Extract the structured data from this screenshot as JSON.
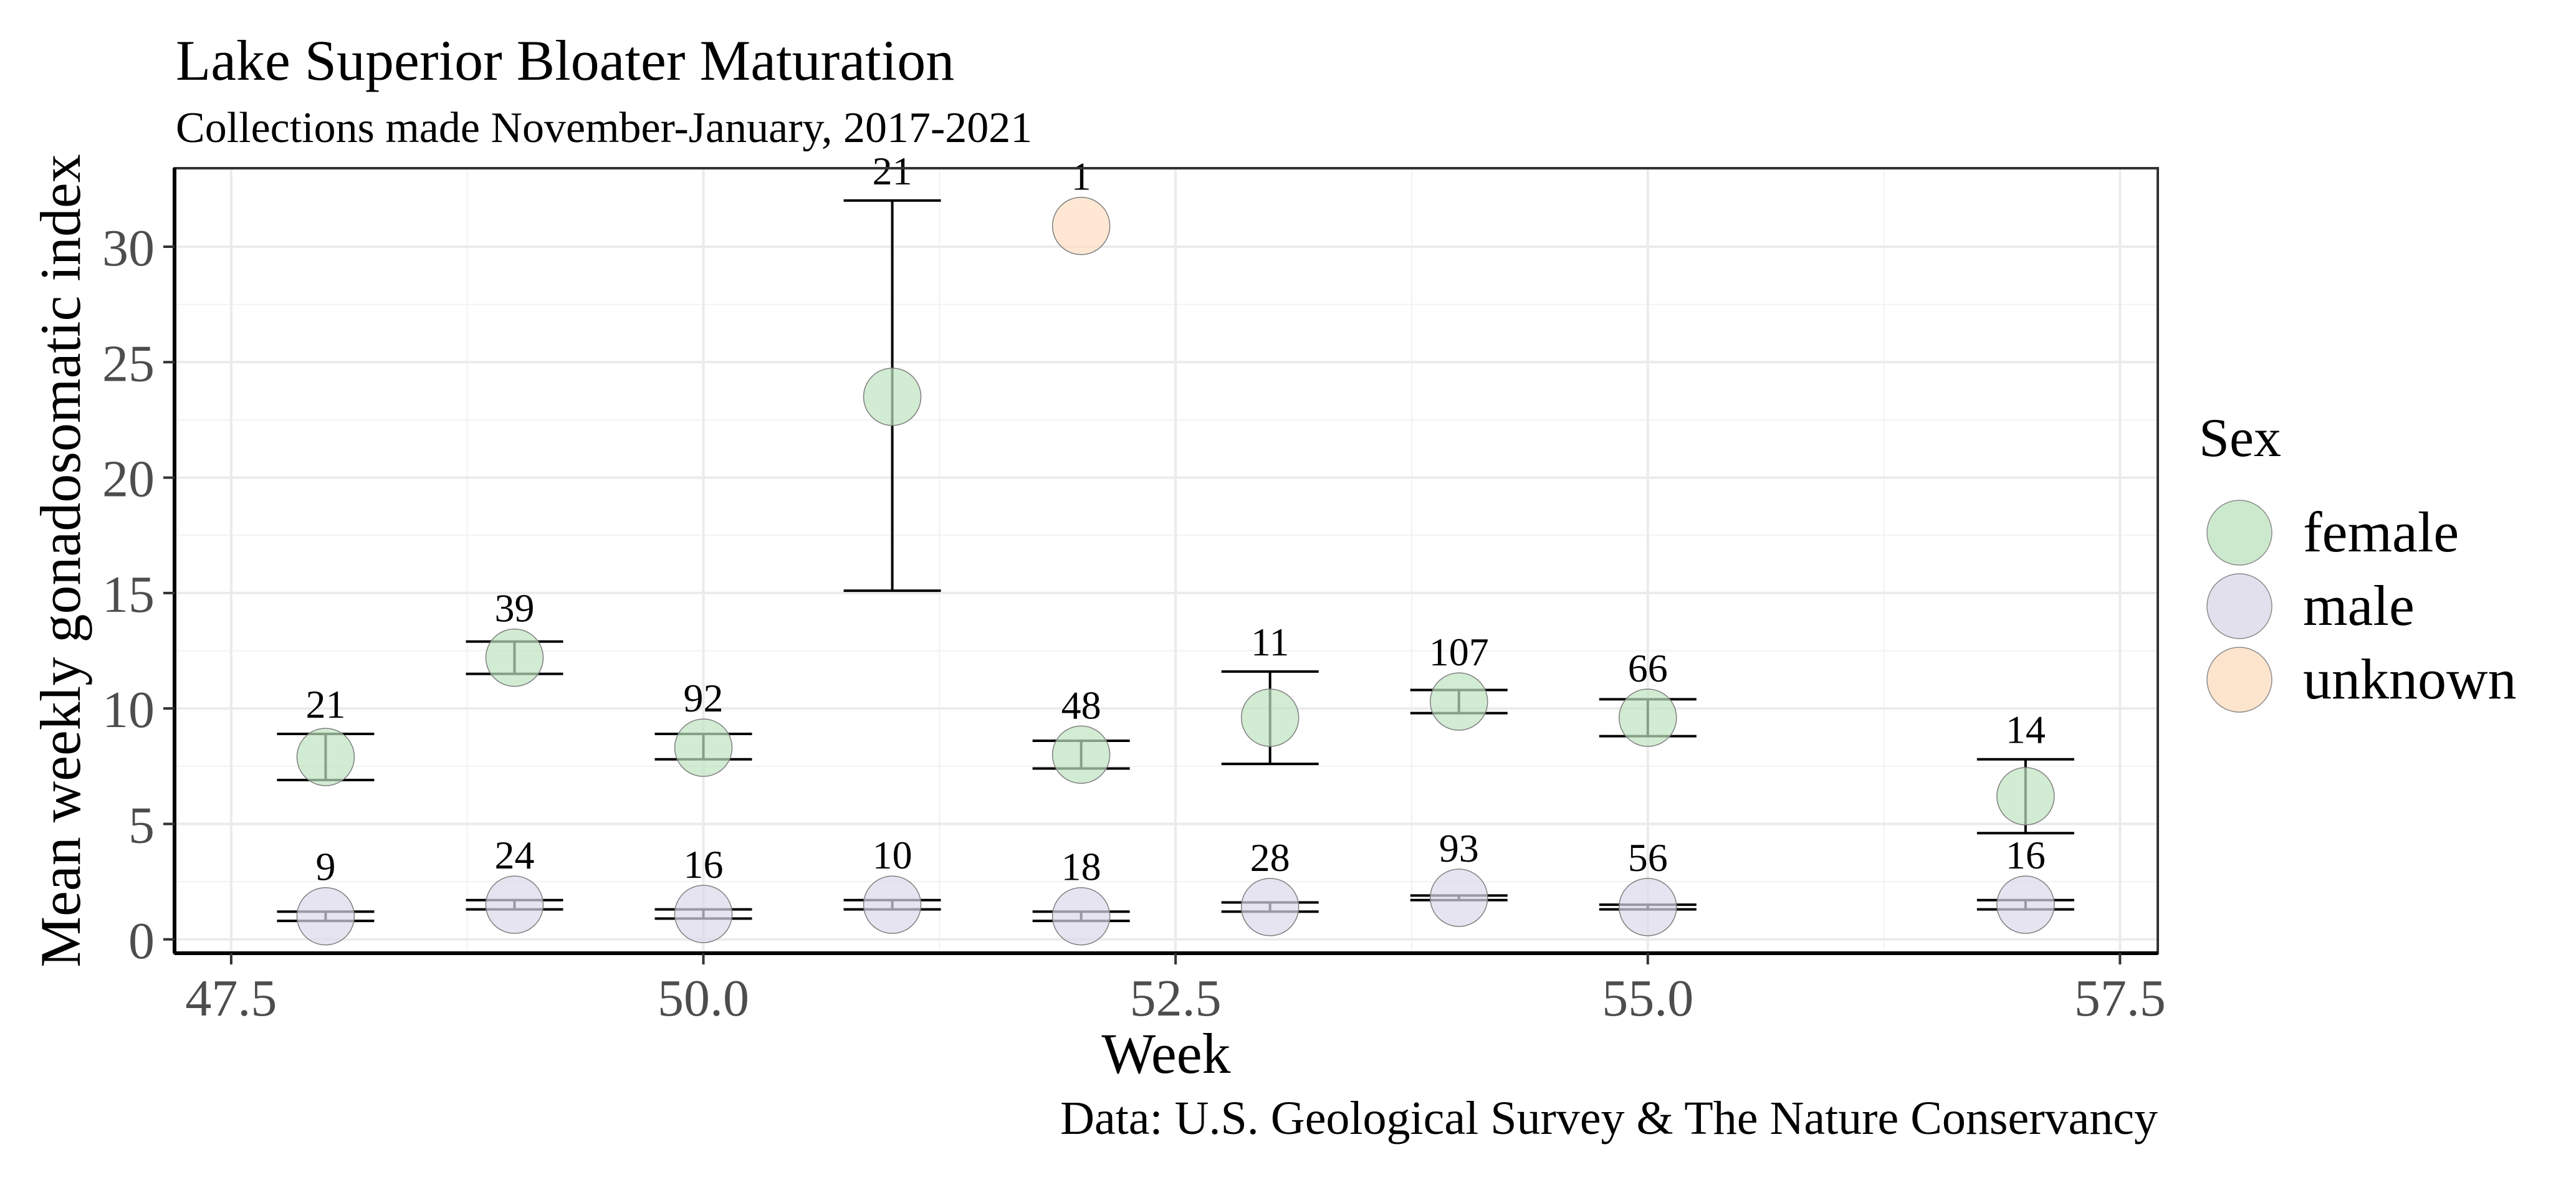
{
  "chart_data": {
    "type": "scatter",
    "title": "Lake Superior Bloater Maturation",
    "subtitle": "Collections made November-January, 2017-2021",
    "xlabel": "Week",
    "ylabel": "Mean weekly gonadosomatic index",
    "caption": "Data: U.S. Geological Survey & The Nature Conservancy",
    "xlim": [
      47.2,
      57.7
    ],
    "ylim": [
      -0.6,
      33.4
    ],
    "x_ticks": [
      47.5,
      50.0,
      52.5,
      55.0,
      57.5
    ],
    "x_tick_labels": [
      "47.5",
      "50.0",
      "52.5",
      "55.0",
      "57.5"
    ],
    "y_ticks": [
      0,
      5,
      10,
      15,
      20,
      25,
      30
    ],
    "y_tick_labels": [
      "0",
      "5",
      "10",
      "15",
      "20",
      "25",
      "30"
    ],
    "grid": true,
    "legend": {
      "title": "Sex",
      "position": "right",
      "items": [
        {
          "label": "female",
          "color": "#bfe3c0"
        },
        {
          "label": "male",
          "color": "#dcd8ea"
        },
        {
          "label": "unknown",
          "color": "#fdddc1"
        }
      ]
    },
    "series": [
      {
        "name": "female",
        "color": "#bfe3c0",
        "points": [
          {
            "x": 48,
            "y": 7.9,
            "ymin": 6.9,
            "ymax": 8.9,
            "n": "21"
          },
          {
            "x": 49,
            "y": 12.2,
            "ymin": 11.5,
            "ymax": 12.9,
            "n": "39"
          },
          {
            "x": 50,
            "y": 8.3,
            "ymin": 7.8,
            "ymax": 8.9,
            "n": "92"
          },
          {
            "x": 51,
            "y": 23.5,
            "ymin": 15.1,
            "ymax": 32.0,
            "n": "21"
          },
          {
            "x": 52,
            "y": 8.0,
            "ymin": 7.4,
            "ymax": 8.6,
            "n": "48"
          },
          {
            "x": 53,
            "y": 9.6,
            "ymin": 7.6,
            "ymax": 11.6,
            "n": "11"
          },
          {
            "x": 54,
            "y": 10.3,
            "ymin": 9.8,
            "ymax": 10.8,
            "n": "107"
          },
          {
            "x": 55,
            "y": 9.6,
            "ymin": 8.8,
            "ymax": 10.4,
            "n": "66"
          },
          {
            "x": 57,
            "y": 6.2,
            "ymin": 4.6,
            "ymax": 7.8,
            "n": "14"
          }
        ]
      },
      {
        "name": "male",
        "color": "#dcd8ea",
        "points": [
          {
            "x": 48,
            "y": 1.0,
            "ymin": 0.8,
            "ymax": 1.2,
            "n": "9"
          },
          {
            "x": 49,
            "y": 1.5,
            "ymin": 1.3,
            "ymax": 1.7,
            "n": "24"
          },
          {
            "x": 50,
            "y": 1.1,
            "ymin": 0.9,
            "ymax": 1.3,
            "n": "16"
          },
          {
            "x": 51,
            "y": 1.5,
            "ymin": 1.3,
            "ymax": 1.7,
            "n": "10"
          },
          {
            "x": 52,
            "y": 1.0,
            "ymin": 0.8,
            "ymax": 1.2,
            "n": "18"
          },
          {
            "x": 53,
            "y": 1.4,
            "ymin": 1.2,
            "ymax": 1.6,
            "n": "28"
          },
          {
            "x": 54,
            "y": 1.8,
            "ymin": 1.7,
            "ymax": 1.9,
            "n": "93"
          },
          {
            "x": 55,
            "y": 1.4,
            "ymin": 1.3,
            "ymax": 1.5,
            "n": "56"
          },
          {
            "x": 57,
            "y": 1.5,
            "ymin": 1.3,
            "ymax": 1.7,
            "n": "16"
          }
        ]
      },
      {
        "name": "unknown",
        "color": "#fdddc1",
        "points": [
          {
            "x": 52,
            "y": 30.9,
            "ymin": null,
            "ymax": null,
            "n": "1"
          }
        ]
      }
    ]
  }
}
